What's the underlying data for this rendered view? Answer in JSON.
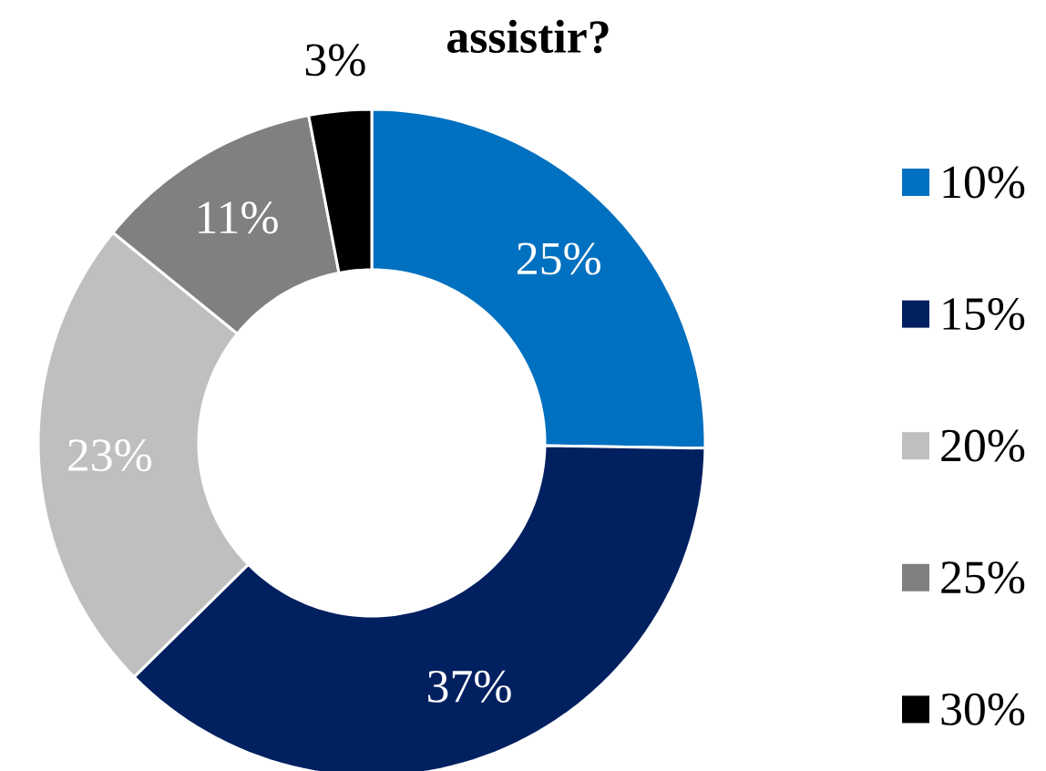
{
  "chart_data": {
    "type": "donut",
    "title": "assistir?",
    "categories": [
      "10%",
      "15%",
      "20%",
      "25%",
      "30%"
    ],
    "values": [
      25,
      37,
      23,
      11,
      3
    ],
    "colors": [
      "#0070c0",
      "#002060",
      "#bfbfbf",
      "#808080",
      "#000000"
    ],
    "value_labels": [
      "25%",
      "37%",
      "23%",
      "11%",
      "3%"
    ],
    "legend": "right"
  }
}
